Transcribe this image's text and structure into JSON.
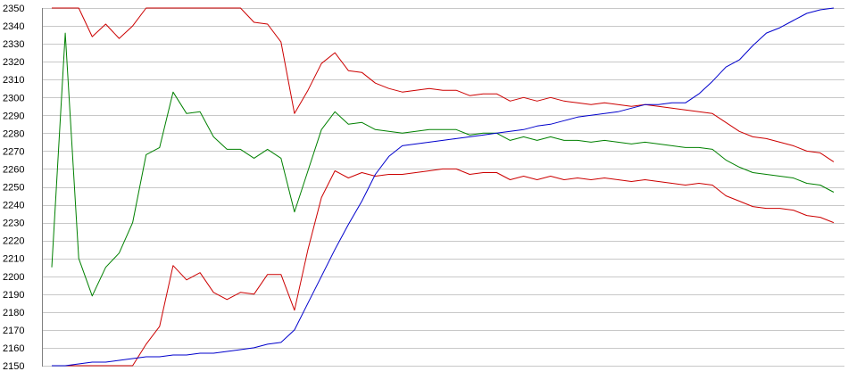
{
  "chart_data": {
    "type": "line",
    "title": "",
    "xlabel": "",
    "ylabel": "",
    "ylim": [
      2150,
      2350
    ],
    "yticks": [
      2150,
      2160,
      2170,
      2180,
      2190,
      2200,
      2210,
      2220,
      2230,
      2240,
      2250,
      2260,
      2270,
      2280,
      2290,
      2300,
      2310,
      2320,
      2330,
      2340,
      2350
    ],
    "grid": true,
    "x": [
      0,
      1,
      2,
      3,
      4,
      5,
      6,
      7,
      8,
      9,
      10,
      11,
      12,
      13,
      14,
      15,
      16,
      17,
      18,
      19,
      20,
      21,
      22,
      23,
      24,
      25,
      26,
      27,
      28,
      29,
      30,
      31,
      32,
      33,
      34,
      35,
      36,
      37,
      38,
      39,
      40,
      41,
      42,
      43,
      44,
      45,
      46,
      47,
      48,
      49,
      50,
      51,
      52,
      53,
      54,
      55,
      56,
      57,
      58
    ],
    "series": [
      {
        "color": "#cc0000",
        "values": [
          2350,
          2350,
          2350,
          2334,
          2341,
          2333,
          2340,
          2350,
          2350,
          2350,
          2350,
          2350,
          2350,
          2350,
          2350,
          2342,
          2341,
          2331,
          2291,
          2304,
          2319,
          2325,
          2315,
          2314,
          2308,
          2305,
          2303,
          2304,
          2305,
          2304,
          2304,
          2301,
          2302,
          2302,
          2298,
          2300,
          2298,
          2300,
          2298,
          2297,
          2296,
          2297,
          2296,
          2295,
          2296,
          2295,
          2294,
          2293,
          2292,
          2291,
          2286,
          2281,
          2278,
          2277,
          2275,
          2273,
          2270,
          2269,
          2264
        ]
      },
      {
        "color": "#cc0000",
        "values": [
          2150,
          2150,
          2150,
          2150,
          2150,
          2150,
          2150,
          2162,
          2172,
          2206,
          2198,
          2202,
          2191,
          2187,
          2191,
          2190,
          2201,
          2201,
          2181,
          2215,
          2244,
          2259,
          2255,
          2258,
          2256,
          2257,
          2257,
          2258,
          2259,
          2260,
          2260,
          2257,
          2258,
          2258,
          2254,
          2256,
          2254,
          2256,
          2254,
          2255,
          2254,
          2255,
          2254,
          2253,
          2254,
          2253,
          2252,
          2251,
          2252,
          2251,
          2245,
          2242,
          2239,
          2238,
          2238,
          2237,
          2234,
          2233,
          2230
        ]
      },
      {
        "color": "#008000",
        "values": [
          2205,
          2336,
          2210,
          2189,
          2205,
          2213,
          2230,
          2268,
          2272,
          2303,
          2291,
          2292,
          2278,
          2271,
          2271,
          2266,
          2271,
          2266,
          2236,
          2259,
          2282,
          2292,
          2285,
          2286,
          2282,
          2281,
          2280,
          2281,
          2282,
          2282,
          2282,
          2279,
          2280,
          2280,
          2276,
          2278,
          2276,
          2278,
          2276,
          2276,
          2275,
          2276,
          2275,
          2274,
          2275,
          2274,
          2273,
          2272,
          2272,
          2271,
          2265,
          2261,
          2258,
          2257,
          2256,
          2255,
          2252,
          2251,
          2247
        ]
      },
      {
        "color": "#0000cc",
        "values": [
          2150,
          2150,
          2151,
          2152,
          2152,
          2153,
          2154,
          2155,
          2155,
          2156,
          2156,
          2157,
          2157,
          2158,
          2159,
          2160,
          2162,
          2163,
          2170,
          2185,
          2200,
          2215,
          2229,
          2242,
          2257,
          2267,
          2273,
          2274,
          2275,
          2276,
          2277,
          2278,
          2279,
          2280,
          2281,
          2282,
          2284,
          2285,
          2287,
          2289,
          2290,
          2291,
          2292,
          2294,
          2296,
          2296,
          2297,
          2297,
          2302,
          2309,
          2317,
          2321,
          2329,
          2336,
          2339,
          2343,
          2347,
          2349,
          2350
        ]
      }
    ]
  }
}
